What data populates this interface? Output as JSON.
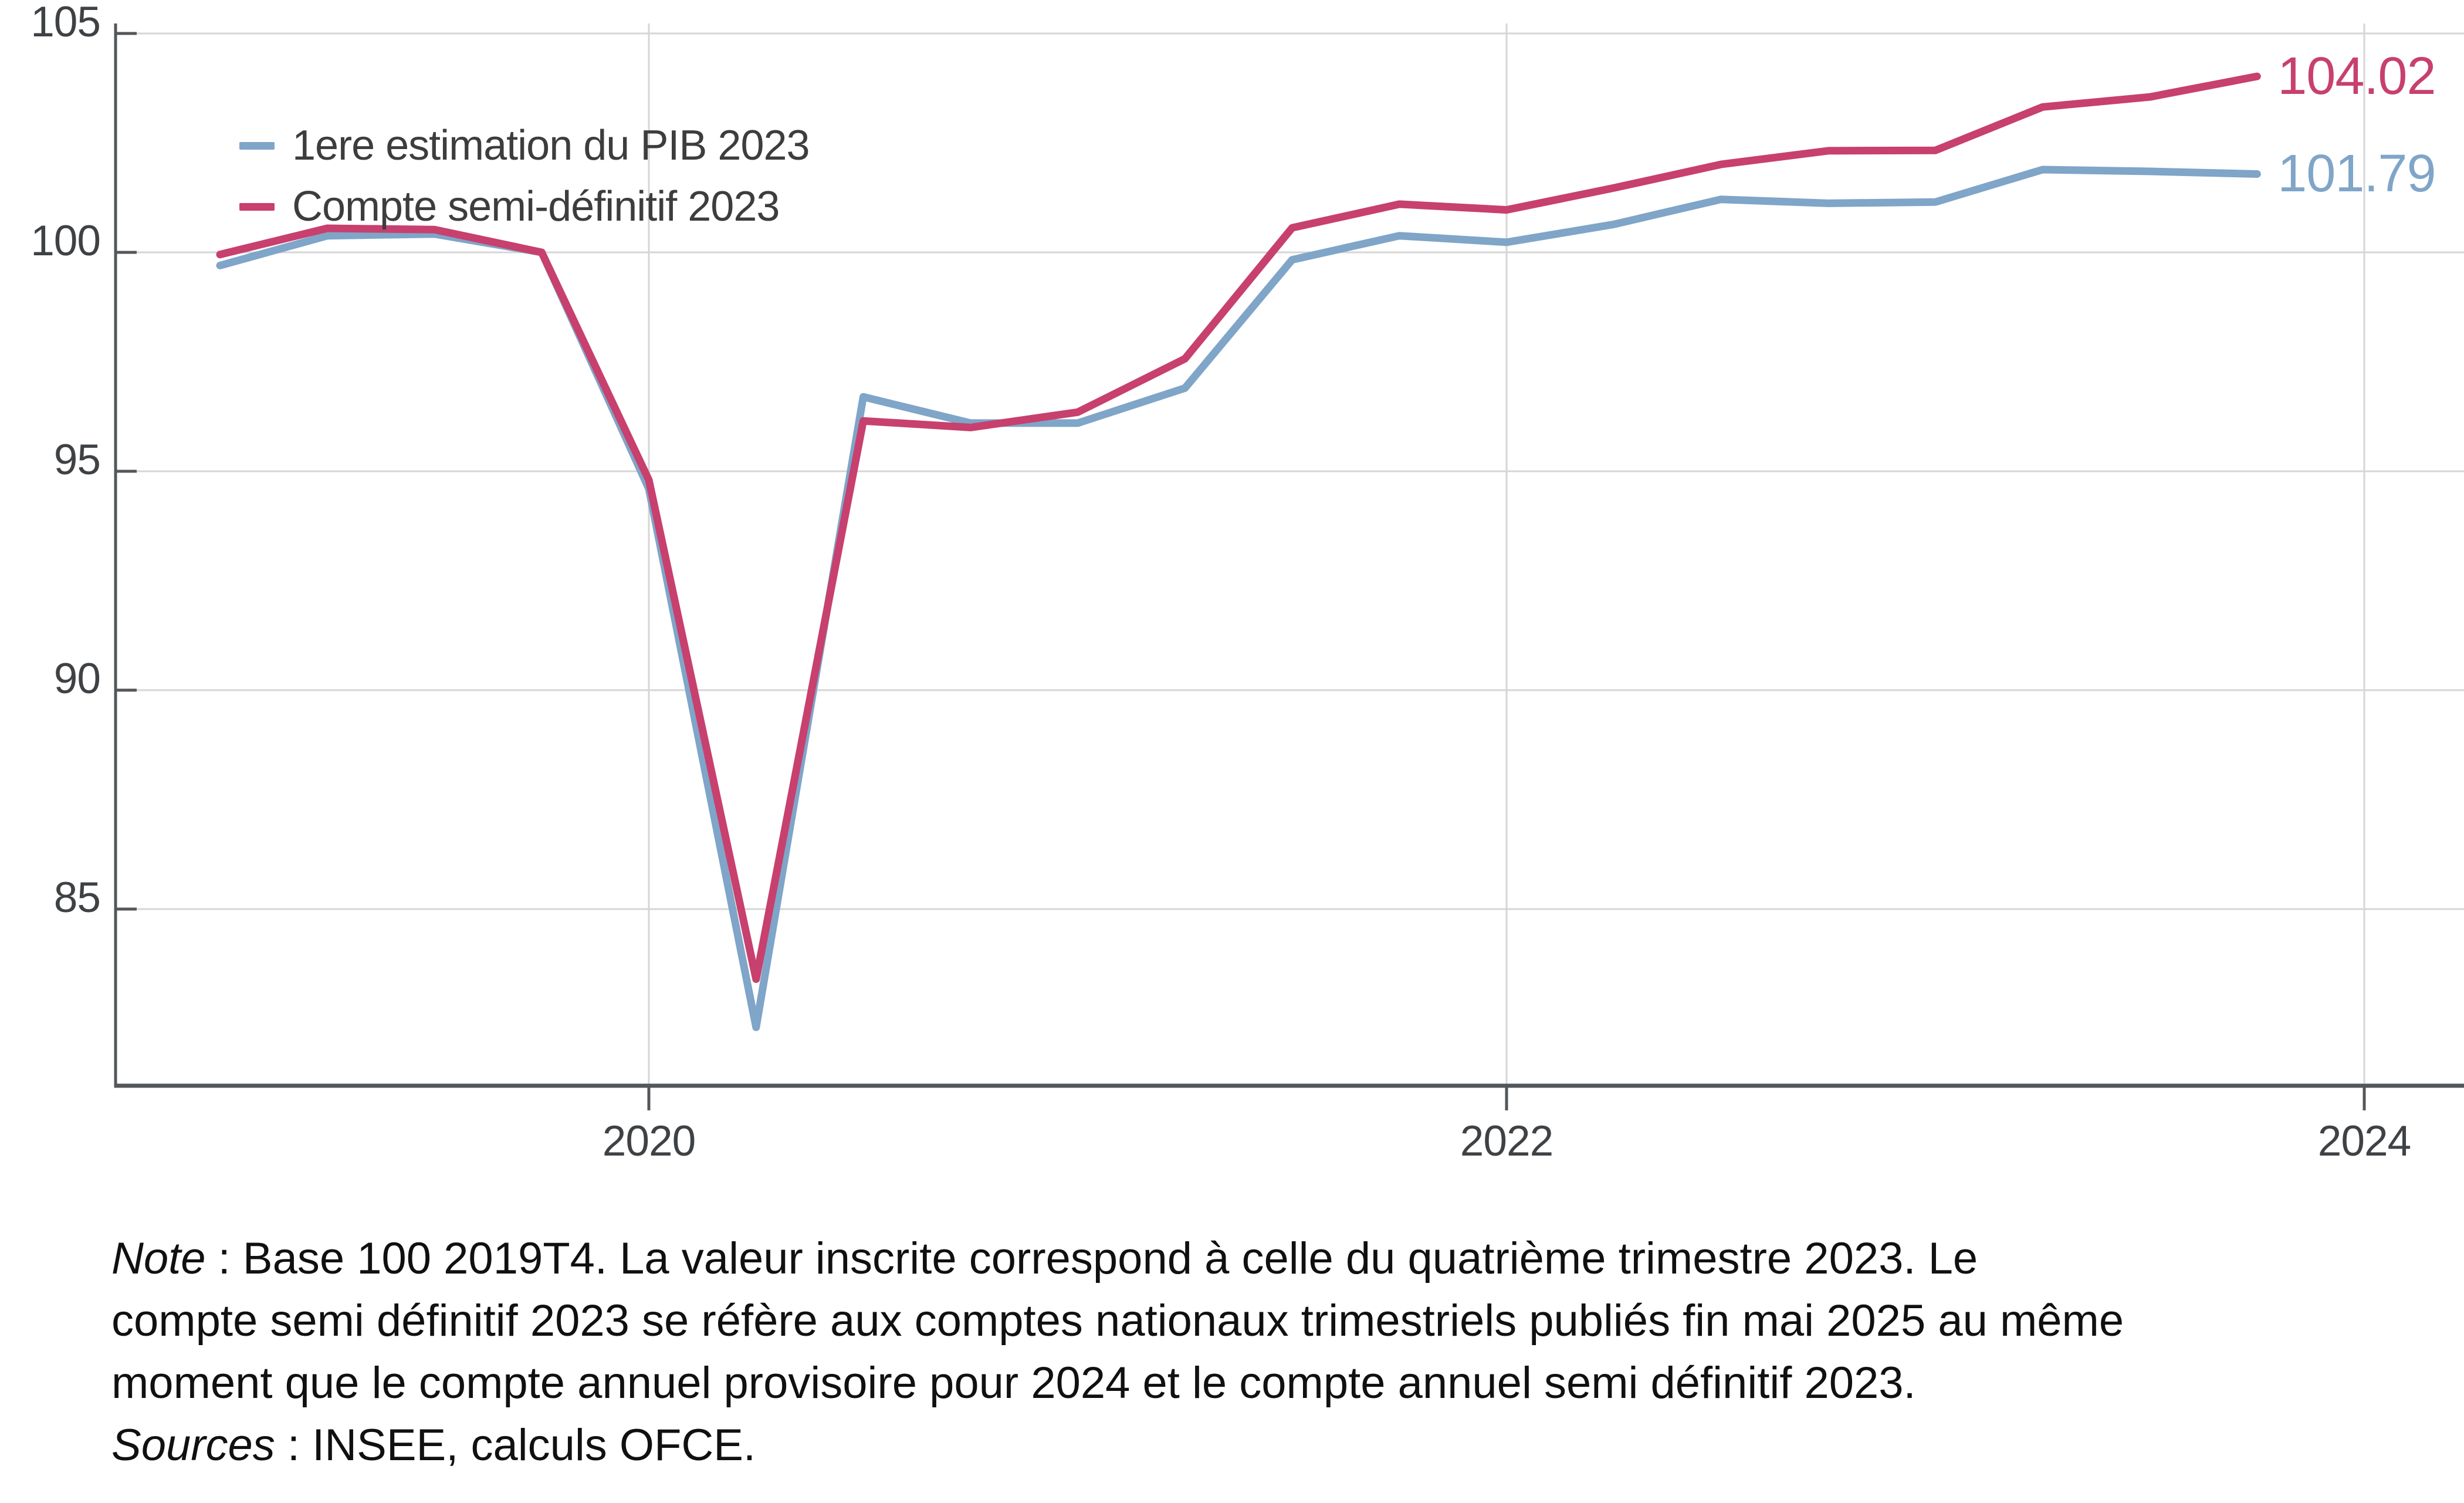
{
  "chart_data": {
    "type": "line",
    "title": "",
    "xlabel": "",
    "ylabel": "",
    "base_note": "Base 100 2019T4",
    "categories": [
      "2019T1",
      "2019T2",
      "2019T3",
      "2019T4",
      "2020T1",
      "2020T2",
      "2020T3",
      "2020T4",
      "2021T1",
      "2021T2",
      "2021T3",
      "2021T4",
      "2022T1",
      "2022T2",
      "2022T3",
      "2022T4",
      "2023T1",
      "2023T2",
      "2023T3",
      "2023T4"
    ],
    "series": [
      {
        "name": "1ere estimation du PIB 2023",
        "color": "#7FA5C8",
        "end_label": "101.79",
        "values": [
          99.7,
          100.38,
          100.42,
          100.0,
          94.6,
          82.3,
          96.7,
          96.1,
          96.1,
          96.9,
          99.83,
          100.38,
          100.23,
          100.64,
          101.21,
          101.12,
          101.15,
          101.89,
          101.85,
          101.79
        ]
      },
      {
        "name": "Compte semi-définitif 2023",
        "color": "#C7406E",
        "end_label": "104.02",
        "values": [
          99.95,
          100.55,
          100.52,
          100.0,
          94.8,
          83.4,
          96.15,
          96.0,
          96.35,
          97.57,
          100.56,
          101.1,
          100.97,
          101.47,
          102.01,
          102.32,
          102.33,
          103.32,
          103.55,
          104.02
        ]
      }
    ],
    "y_ticks": [
      105,
      100,
      95,
      90,
      85
    ],
    "x_ticks": [
      {
        "label": "2020",
        "year": 2020
      },
      {
        "label": "2022",
        "year": 2022
      },
      {
        "label": "2024",
        "year": 2024
      }
    ],
    "ylim": [
      81,
      105.3
    ],
    "xlim_years": [
      2018.76,
      2024.23
    ],
    "grid": true,
    "legend_position": "top-left"
  },
  "note": {
    "note_label": "Note",
    "line1_rest": " : Base 100 2019T4. La valeur inscrite correspond à celle du quatrième trimestre 2023. Le",
    "line2": "compte semi définitif 2023 se réfère aux comptes nationaux trimestriels publiés fin mai 2025 au même",
    "line3": "moment que le compte annuel provisoire pour 2024 et le compte annuel semi définitif 2023.",
    "sources_label": "Sources",
    "sources_rest": " : INSEE, calculs OFCE."
  },
  "style": {
    "grid_color": "#d6d6d6",
    "spine_color": "#53575a",
    "tick_label_color": "#3f4245"
  }
}
